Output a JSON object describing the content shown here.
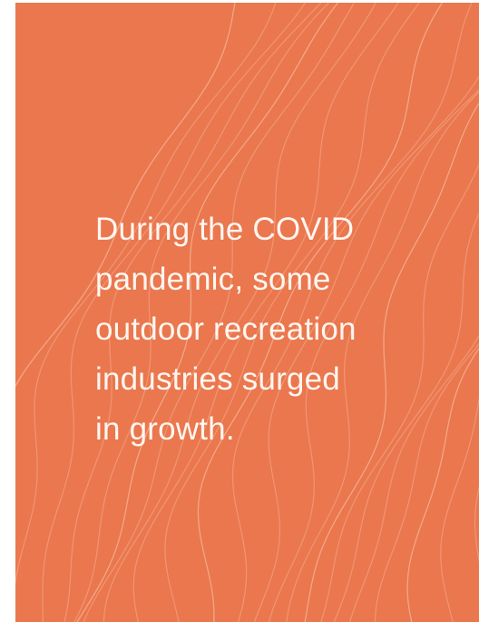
{
  "card": {
    "lines": [
      "During the COVID",
      "pandemic, some",
      "outdoor recreation",
      "industries surged",
      "in growth."
    ]
  }
}
